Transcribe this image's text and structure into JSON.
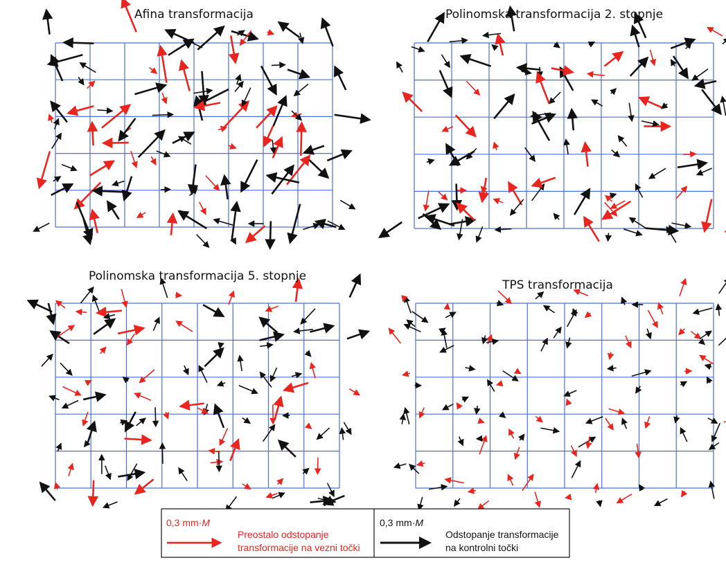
{
  "panels": [
    {
      "title": "Afina transformacija"
    },
    {
      "title": "Polinomska transformacija 2. stopnje"
    },
    {
      "title": "Polinomska transformacija 5. stopnje"
    },
    {
      "title": "TPS transformacija"
    }
  ],
  "legend": {
    "residual": {
      "scale": {
        "prefix": "0,3 mm·",
        "unit": "M"
      },
      "lines": [
        "Preostalo odstopanje",
        "transformacije na vezni točki"
      ]
    },
    "control": {
      "scale": {
        "prefix": "0,3 mm·",
        "unit": "M"
      },
      "lines": [
        "Odstopanje transformacije",
        "na kontrolni točki"
      ]
    }
  }
}
